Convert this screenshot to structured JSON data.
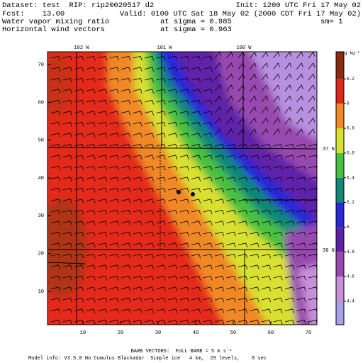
{
  "chart_data": {
    "type": "contour",
    "header": {
      "dataset": "Dataset: test  RIP: rip20020517 d2",
      "init": "Init: 1200 UTC Fri 17 May 02",
      "fcst": "Fcst:    13.00",
      "valid": "Valid: 0100 UTC Sat 18 May 02 (2000 CDT Fri 17 May 02)",
      "field1": "Water vapor mixing ratio",
      "level1": "at sigma = 0.985",
      "smooth": "sm= 1",
      "field2": "Horizontal wind vectors",
      "level2": "at sigma = 0.963"
    },
    "footer": {
      "barb": "BARB VECTORS:  FULL BARB = 5 m s⁻¹",
      "model": "Model info: V3.5.0 No Cumulus Blackadar  Simple ice   4 km,  29 levels,    8 sec"
    },
    "map_labels": [
      "102 W",
      "101 W",
      "100 W",
      "37 N",
      "36 N"
    ],
    "xlim": [
      0.57,
      72.26
    ],
    "ylim": [
      1.19,
      73.4
    ],
    "xticks": [
      10,
      20,
      30,
      40,
      50,
      60,
      70
    ],
    "yticks": [
      10,
      20,
      30,
      40,
      50,
      60,
      70
    ],
    "colorbar": {
      "units": "g kg⁻¹",
      "lim": [
        4.21,
        6.42
      ],
      "ticks": [
        4.4,
        4.6,
        4.8,
        5,
        5.2,
        5.4,
        5.6,
        5.8,
        6,
        6.2
      ],
      "tick_labels": [
        "4.4",
        "4.6",
        "4.8",
        "5",
        "5.2",
        "5.4",
        "5.6",
        "5.8",
        "6",
        "6.2"
      ],
      "colors": [
        "#a8a0e8",
        "#c890d8",
        "#9848b0",
        "#6020a8",
        "#2828d8",
        "#108878",
        "#48c040",
        "#d8e030",
        "#f08828",
        "#e02818",
        "#8a2a10"
      ]
    }
  }
}
